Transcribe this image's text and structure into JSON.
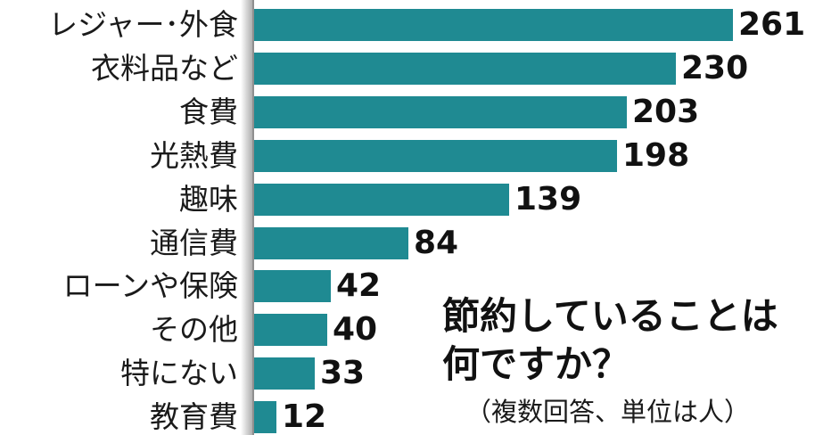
{
  "chart_data": {
    "type": "bar",
    "orientation": "horizontal",
    "title_lines": [
      "節約していることは",
      "何ですか？"
    ],
    "note": "（複数回答、単位は人）",
    "categories": [
      "レジャー･外食",
      "衣料品など",
      "食費",
      "光熱費",
      "趣味",
      "通信費",
      "ローンや保険",
      "その他",
      "特にない",
      "教育費"
    ],
    "values": [
      261,
      230,
      203,
      198,
      139,
      84,
      42,
      40,
      33,
      12
    ],
    "value_labels": [
      "261",
      "230",
      "203",
      "198",
      "139",
      "84",
      "42",
      "40",
      "33",
      "12"
    ],
    "xlim": [
      0,
      261
    ],
    "grid": false,
    "bar_color": "#1f8a92"
  }
}
